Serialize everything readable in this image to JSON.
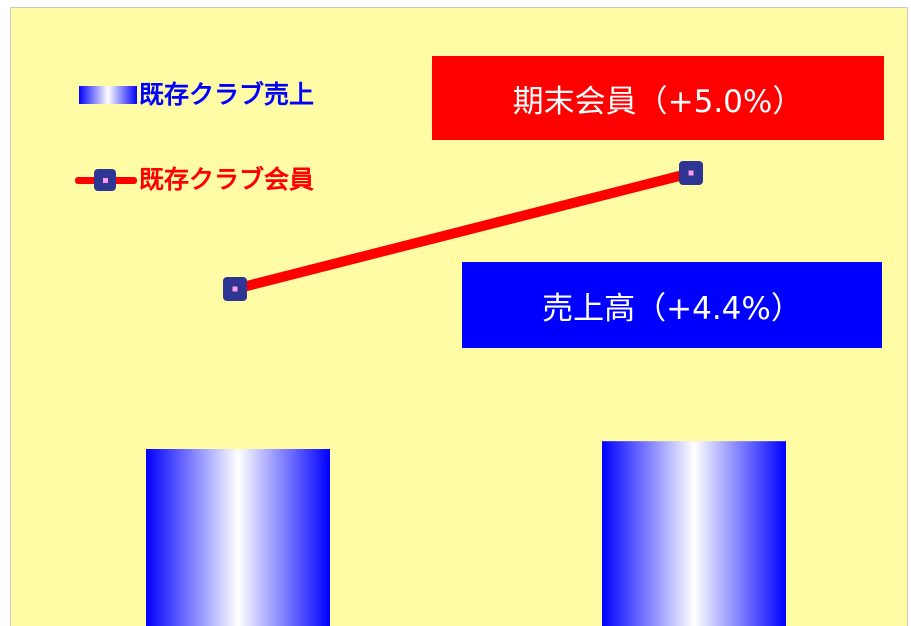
{
  "chart_data": {
    "type": "bar",
    "categories": [
      "",
      ""
    ],
    "series": [
      {
        "name": "既存クラブ売上",
        "kind": "bar",
        "values": [
          100,
          104.4
        ],
        "color": "#0000ff"
      },
      {
        "name": "既存クラブ会員",
        "kind": "line",
        "values": [
          100,
          105.0
        ],
        "color": "#ff0000",
        "marker_color": "#2e3592"
      }
    ],
    "annotations": [
      {
        "text": "期末会員（+5.0%）",
        "color": "#ff0000"
      },
      {
        "text": "売上高（+4.4%）",
        "color": "#0000ff"
      }
    ],
    "title": "",
    "xlabel": "",
    "ylabel": "",
    "grid": false,
    "legend_position": "top-left",
    "background": "#fffca5"
  }
}
